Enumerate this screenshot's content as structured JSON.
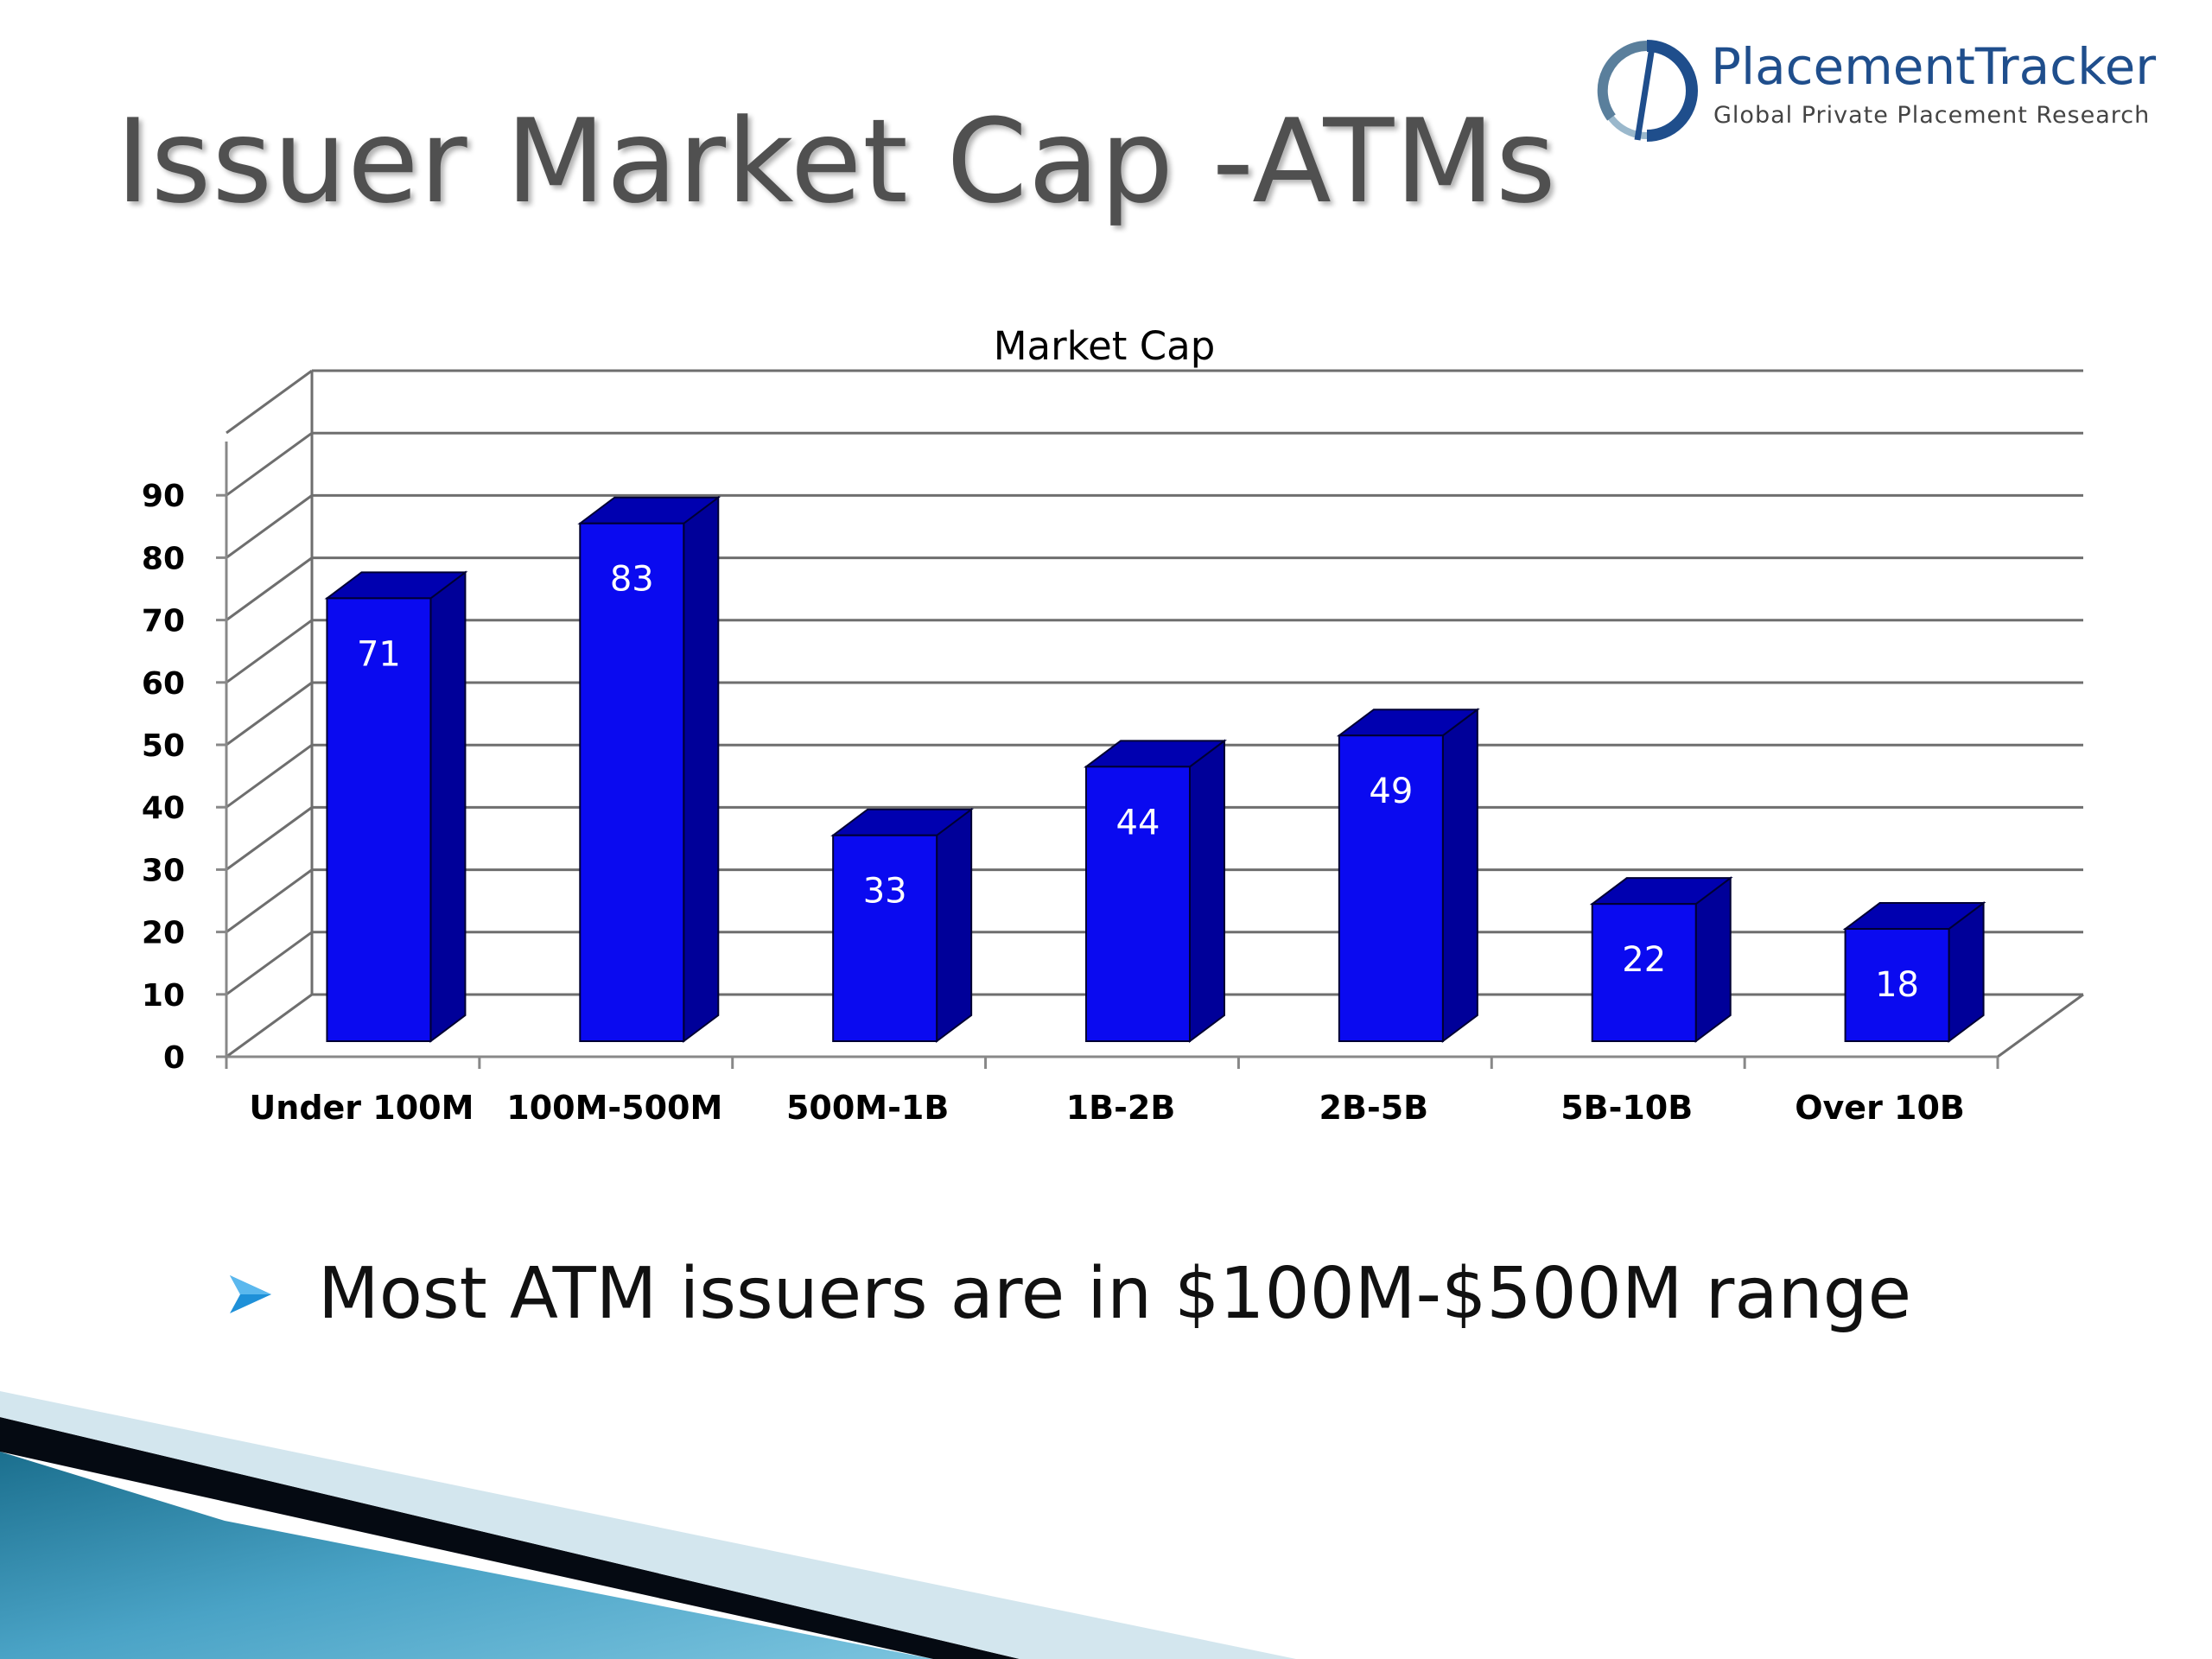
{
  "slide": {
    "title": "Issuer Market Cap -ATMs",
    "logo": {
      "name": "PlacementTracker",
      "tagline": "Global Private Placement Research",
      "mark_icon": "placementtracker-logo-icon"
    },
    "bullets": [
      {
        "icon": "arrowhead-bullet-icon",
        "text": "Most ATM issuers are in $100M-$500M range"
      }
    ]
  },
  "colors": {
    "bar_front": "#0a0af0",
    "bar_side": "#000099",
    "bar_top": "#0000b0",
    "gridline": "#6e6e6e",
    "title": "#505050",
    "bullet": "#1e90d8",
    "logo_blue": "#1f4e8c"
  },
  "chart_data": {
    "type": "bar",
    "style": "3d-column",
    "title": "Market Cap",
    "xlabel": "",
    "ylabel": "",
    "categories": [
      "Under 100M",
      "100M-500M",
      "500M-1B",
      "1B-2B",
      "2B-5B",
      "5B-10B",
      "Over 10B"
    ],
    "values": [
      71,
      83,
      33,
      44,
      49,
      22,
      18
    ],
    "data_labels": [
      "71",
      "83",
      "33",
      "44",
      "49",
      "22",
      "18"
    ],
    "ylim": [
      0,
      90
    ],
    "yticks": [
      "0",
      "10",
      "20",
      "30",
      "40",
      "50",
      "60",
      "70",
      "80",
      "90"
    ],
    "grid": true,
    "legend": "none"
  }
}
